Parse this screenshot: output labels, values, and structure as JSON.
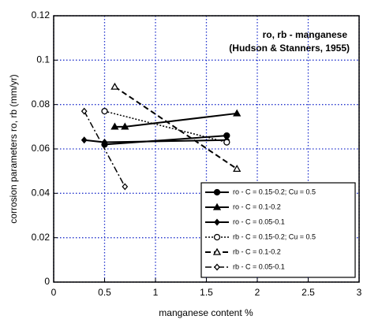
{
  "chart_data": {
    "type": "line",
    "annotations": [
      "ro, rb - manganese",
      "(Hudson & Stanners, 1955)"
    ],
    "x_label": "manganese content %",
    "y_label": "corrosion parameters  ro, rb (mm/yr)",
    "xlim": [
      0,
      3
    ],
    "xticks": [
      0,
      0.5,
      1,
      1.5,
      2,
      2.5,
      3
    ],
    "ylim": [
      0,
      0.12
    ],
    "yticks": [
      0,
      0.02,
      0.04,
      0.06,
      0.08,
      0.1,
      0.12
    ],
    "grid": true,
    "grid_color": "#2233cc",
    "legend": "lower right",
    "series": [
      {
        "name": "ro - C = 0.15-0.2; Cu = 0.5",
        "color": "#000000",
        "dash": "solid",
        "marker": "circle",
        "filled": true,
        "x": [
          0.5,
          1.7
        ],
        "values": [
          0.062,
          0.066
        ]
      },
      {
        "name": "ro - C = 0.1-0.2",
        "color": "#000000",
        "dash": "solid",
        "marker": "triangle",
        "filled": true,
        "x": [
          0.6,
          0.7,
          1.8
        ],
        "values": [
          0.07,
          0.07,
          0.076
        ]
      },
      {
        "name": "ro - C = 0.05-0.1",
        "color": "#000000",
        "dash": "solid",
        "marker": "diamond",
        "filled": true,
        "x": [
          0.3,
          0.5,
          1.7
        ],
        "values": [
          0.064,
          0.063,
          0.064
        ]
      },
      {
        "name": "rb - C = 0.15-0.2; Cu = 0.5",
        "color": "#000000",
        "dash": "dotted",
        "marker": "circle",
        "filled": false,
        "x": [
          0.5,
          1.7
        ],
        "values": [
          0.077,
          0.063
        ]
      },
      {
        "name": "rb - C = 0.1-0.2",
        "color": "#000000",
        "dash": "dashed",
        "marker": "triangle",
        "filled": false,
        "x": [
          0.6,
          1.8
        ],
        "values": [
          0.088,
          0.051
        ]
      },
      {
        "name": "rb - C = 0.05-0.1",
        "color": "#000000",
        "dash": "dashdot",
        "marker": "diamond",
        "filled": false,
        "x": [
          0.3,
          0.7
        ],
        "values": [
          0.077,
          0.043
        ]
      }
    ]
  }
}
